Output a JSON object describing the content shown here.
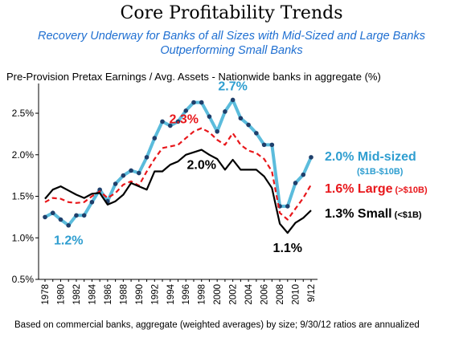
{
  "title": "Core Profitability Trends",
  "subtitle": "Recovery Underway for Banks of all Sizes with Mid-Sized and Large Banks Outperforming Small Banks",
  "chart_label": "Pre-Provision Pretax Earnings / Avg. Assets - Nationwide banks in aggregate (%)",
  "footnote": "Based on commercial banks, aggregate (weighted averages) by size; 9/30/12 ratios are annualized",
  "colors": {
    "mid": "#5bbcdc",
    "mid_dot": "#1f3f6b",
    "mid_text": "#2f9ed0",
    "large": "#e8171b",
    "small": "#000000"
  },
  "chart_data": {
    "type": "line",
    "title": "Core Profitability Trends",
    "ylabel": "Pre-Provision Pretax Earnings / Avg. Assets - Nationwide banks in aggregate (%)",
    "ylim": [
      0.5,
      2.8
    ],
    "yticks": [
      "0.5%",
      "1.0%",
      "1.5%",
      "2.0%",
      "2.5%"
    ],
    "ytick_values": [
      0.5,
      1.0,
      1.5,
      2.0,
      2.5
    ],
    "categories": [
      "1978",
      "1979",
      "1980",
      "1981",
      "1982",
      "1983",
      "1984",
      "1985",
      "1986",
      "1987",
      "1988",
      "1989",
      "1990",
      "1991",
      "1992",
      "1993",
      "1994",
      "1995",
      "1996",
      "1997",
      "1998",
      "1999",
      "2000",
      "2001",
      "2002",
      "2003",
      "2004",
      "2005",
      "2006",
      "2007",
      "2008",
      "2009",
      "2010",
      "2011",
      "9/12"
    ],
    "xtick_labels": [
      "1978",
      "1980",
      "1982",
      "1984",
      "1986",
      "1988",
      "1990",
      "1992",
      "1994",
      "1996",
      "1998",
      "2000",
      "2002",
      "2004",
      "2006",
      "2008",
      "2010",
      "9/12"
    ],
    "grid": false,
    "series": [
      {
        "name": "Mid-sized",
        "sublabel": "($1B-$10B)",
        "end_label": "2.0%",
        "values": [
          1.25,
          1.3,
          1.22,
          1.15,
          1.27,
          1.27,
          1.43,
          1.58,
          1.44,
          1.65,
          1.75,
          1.81,
          1.78,
          1.97,
          2.2,
          2.4,
          2.35,
          2.4,
          2.53,
          2.63,
          2.63,
          2.46,
          2.28,
          2.52,
          2.66,
          2.44,
          2.36,
          2.26,
          2.12,
          2.12,
          1.38,
          1.38,
          1.66,
          1.76,
          1.97
        ]
      },
      {
        "name": "Large",
        "sublabel": "(>$10B)",
        "end_label": "1.6%",
        "values": [
          1.43,
          1.48,
          1.47,
          1.43,
          1.42,
          1.43,
          1.5,
          1.56,
          1.48,
          1.54,
          1.64,
          1.68,
          1.63,
          1.8,
          1.95,
          2.08,
          2.1,
          2.12,
          2.2,
          2.28,
          2.32,
          2.27,
          2.18,
          2.12,
          2.26,
          2.12,
          2.05,
          2.02,
          1.95,
          1.8,
          1.3,
          1.22,
          1.35,
          1.48,
          1.64
        ]
      },
      {
        "name": "Small",
        "sublabel": "(<$1B)",
        "end_label": "1.3%",
        "values": [
          1.47,
          1.58,
          1.62,
          1.57,
          1.52,
          1.48,
          1.53,
          1.54,
          1.4,
          1.44,
          1.52,
          1.66,
          1.62,
          1.58,
          1.8,
          1.8,
          1.88,
          1.92,
          2.0,
          2.03,
          2.06,
          2.0,
          1.95,
          1.82,
          1.94,
          1.82,
          1.82,
          1.82,
          1.74,
          1.6,
          1.17,
          1.06,
          1.18,
          1.24,
          1.33
        ]
      }
    ],
    "annotations": [
      {
        "text": "2.7%",
        "series": 0,
        "index": 24,
        "color": "mid_text",
        "pos": "above"
      },
      {
        "text": "1.2%",
        "series": 0,
        "index": 3,
        "color": "mid_text",
        "pos": "below"
      },
      {
        "text": "2.3%",
        "series": 1,
        "index": 20,
        "color": "large",
        "pos": "left-above"
      },
      {
        "text": "2.0%",
        "series": 2,
        "index": 20,
        "color": "small",
        "pos": "below"
      },
      {
        "text": "1.1%",
        "series": 2,
        "index": 31,
        "color": "small",
        "pos": "below"
      }
    ]
  }
}
